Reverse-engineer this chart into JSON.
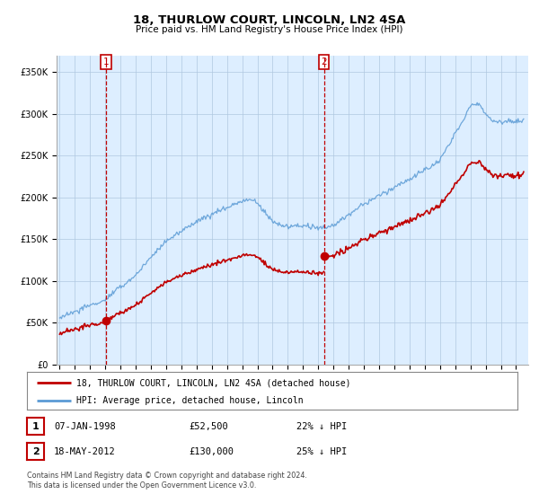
{
  "title": "18, THURLOW COURT, LINCOLN, LN2 4SA",
  "subtitle": "Price paid vs. HM Land Registry's House Price Index (HPI)",
  "hpi_color": "#5b9bd5",
  "price_color": "#c00000",
  "bg_chart": "#ddeeff",
  "ylim": [
    0,
    370000
  ],
  "yticks": [
    0,
    50000,
    100000,
    150000,
    200000,
    250000,
    300000,
    350000
  ],
  "ytick_labels": [
    "£0",
    "£50K",
    "£100K",
    "£150K",
    "£200K",
    "£250K",
    "£300K",
    "£350K"
  ],
  "purchase1_date": 1998.05,
  "purchase1_price": 52500,
  "purchase2_date": 2012.37,
  "purchase2_price": 130000,
  "legend_line1": "18, THURLOW COURT, LINCOLN, LN2 4SA (detached house)",
  "legend_line2": "HPI: Average price, detached house, Lincoln",
  "table_row1": [
    "1",
    "07-JAN-1998",
    "£52,500",
    "22% ↓ HPI"
  ],
  "table_row2": [
    "2",
    "18-MAY-2012",
    "£130,000",
    "25% ↓ HPI"
  ],
  "footer": "Contains HM Land Registry data © Crown copyright and database right 2024.\nThis data is licensed under the Open Government Licence v3.0.",
  "background_color": "#ffffff",
  "grid_color": "#b0c8e0"
}
